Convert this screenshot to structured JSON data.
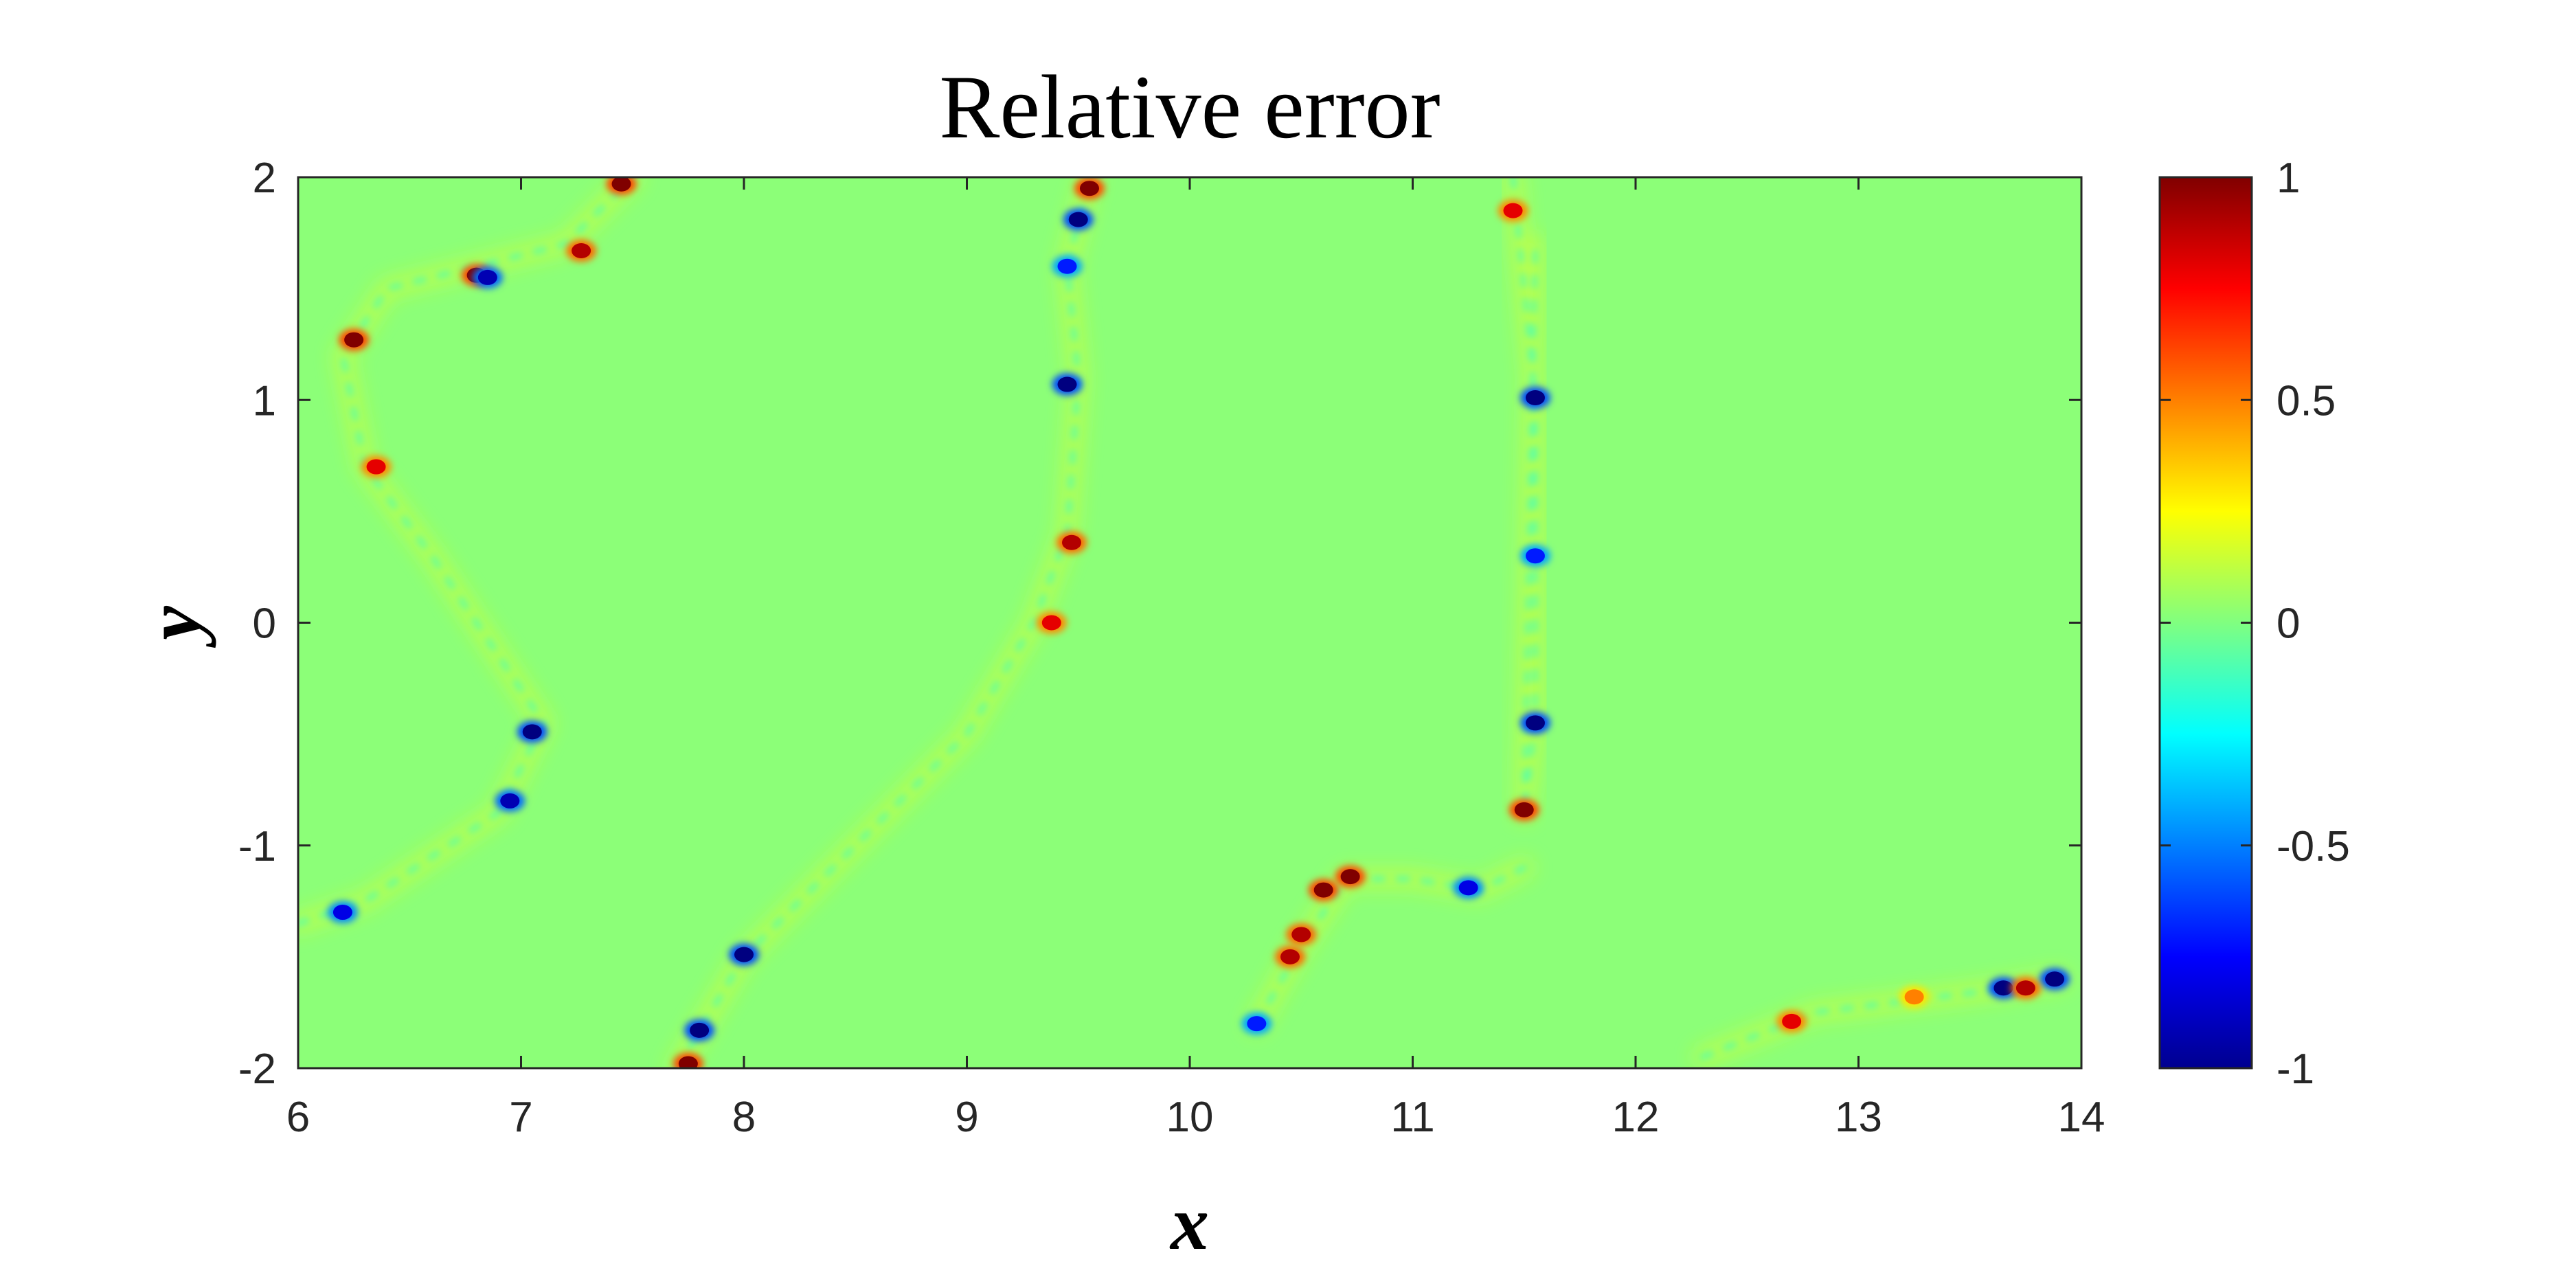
{
  "chart_data": {
    "type": "heatmap",
    "title": "Relative error",
    "xlabel": "x",
    "ylabel": "y",
    "xlim": [
      6,
      14
    ],
    "ylim": [
      -2,
      2
    ],
    "x_ticks": [
      6,
      7,
      8,
      9,
      10,
      11,
      12,
      13,
      14
    ],
    "y_ticks": [
      -2,
      -1,
      0,
      1,
      2
    ],
    "colorbar": {
      "colormap": "jet",
      "range": [
        -1,
        1
      ],
      "ticks": [
        -1,
        -0.5,
        0,
        0.5,
        1
      ]
    },
    "background_value": 0,
    "error_fronts": [
      {
        "name": "front-1",
        "x": [
          6.0,
          6.3,
          6.9,
          7.1,
          6.8,
          6.6,
          6.3,
          6.2,
          6.4,
          6.8,
          7.2,
          7.5
        ],
        "y": [
          -1.35,
          -1.25,
          -0.85,
          -0.45,
          0.0,
          0.3,
          0.7,
          1.2,
          1.5,
          1.6,
          1.7,
          2.0
        ]
      },
      {
        "name": "front-2",
        "x": [
          7.7,
          8.0,
          8.4,
          9.0,
          9.3,
          9.45,
          9.5,
          9.45,
          9.55
        ],
        "y": [
          -2.0,
          -1.5,
          -1.1,
          -0.5,
          0.0,
          0.4,
          1.1,
          1.6,
          2.0
        ]
      },
      {
        "name": "front-3",
        "x": [
          11.45,
          11.55,
          11.55,
          11.55,
          11.5,
          11.55
        ],
        "y": [
          2.0,
          1.0,
          0.3,
          -0.45,
          -0.85,
          1.7
        ]
      },
      {
        "name": "front-4",
        "x": [
          10.3,
          10.5,
          10.7,
          11.0,
          11.3,
          11.5
        ],
        "y": [
          -1.8,
          -1.45,
          -1.15,
          -1.15,
          -1.2,
          -1.1
        ]
      },
      {
        "name": "front-5",
        "x": [
          12.3,
          12.8,
          13.2,
          13.6,
          13.9
        ],
        "y": [
          -1.95,
          -1.75,
          -1.7,
          -1.65,
          -1.6
        ]
      }
    ],
    "extremes": [
      {
        "x": 6.8,
        "y": 1.56,
        "value": 1
      },
      {
        "x": 7.45,
        "y": 1.97,
        "value": 1
      },
      {
        "x": 6.25,
        "y": 1.27,
        "value": 1
      },
      {
        "x": 6.35,
        "y": 0.7,
        "value": 0.8
      },
      {
        "x": 7.27,
        "y": 1.67,
        "value": 0.9
      },
      {
        "x": 7.05,
        "y": -0.49,
        "value": -1
      },
      {
        "x": 6.95,
        "y": -0.8,
        "value": -0.9
      },
      {
        "x": 6.2,
        "y": -1.3,
        "value": -0.8
      },
      {
        "x": 6.85,
        "y": 1.55,
        "value": -0.9
      },
      {
        "x": 7.75,
        "y": -1.98,
        "value": 1
      },
      {
        "x": 7.8,
        "y": -1.83,
        "value": -1
      },
      {
        "x": 8.0,
        "y": -1.49,
        "value": -1
      },
      {
        "x": 9.45,
        "y": 1.07,
        "value": -1
      },
      {
        "x": 9.47,
        "y": 0.36,
        "value": 0.9
      },
      {
        "x": 9.5,
        "y": 1.81,
        "value": -1
      },
      {
        "x": 9.55,
        "y": 1.95,
        "value": 1
      },
      {
        "x": 9.45,
        "y": 1.6,
        "value": -0.7
      },
      {
        "x": 9.38,
        "y": 0.0,
        "value": 0.8
      },
      {
        "x": 11.55,
        "y": 1.01,
        "value": -1
      },
      {
        "x": 11.55,
        "y": -0.45,
        "value": -1
      },
      {
        "x": 11.5,
        "y": -0.84,
        "value": 1
      },
      {
        "x": 11.45,
        "y": 1.85,
        "value": 0.8
      },
      {
        "x": 11.55,
        "y": 0.3,
        "value": -0.7
      },
      {
        "x": 10.72,
        "y": -1.14,
        "value": 1
      },
      {
        "x": 10.6,
        "y": -1.2,
        "value": 1
      },
      {
        "x": 10.5,
        "y": -1.4,
        "value": 0.9
      },
      {
        "x": 10.45,
        "y": -1.5,
        "value": 0.9
      },
      {
        "x": 11.25,
        "y": -1.19,
        "value": -0.8
      },
      {
        "x": 10.3,
        "y": -1.8,
        "value": -0.7
      },
      {
        "x": 13.65,
        "y": -1.64,
        "value": -1
      },
      {
        "x": 13.88,
        "y": -1.6,
        "value": -1
      },
      {
        "x": 13.75,
        "y": -1.64,
        "value": 0.9
      },
      {
        "x": 12.7,
        "y": -1.79,
        "value": 0.8
      },
      {
        "x": 13.25,
        "y": -1.68,
        "value": 0.5
      }
    ]
  }
}
